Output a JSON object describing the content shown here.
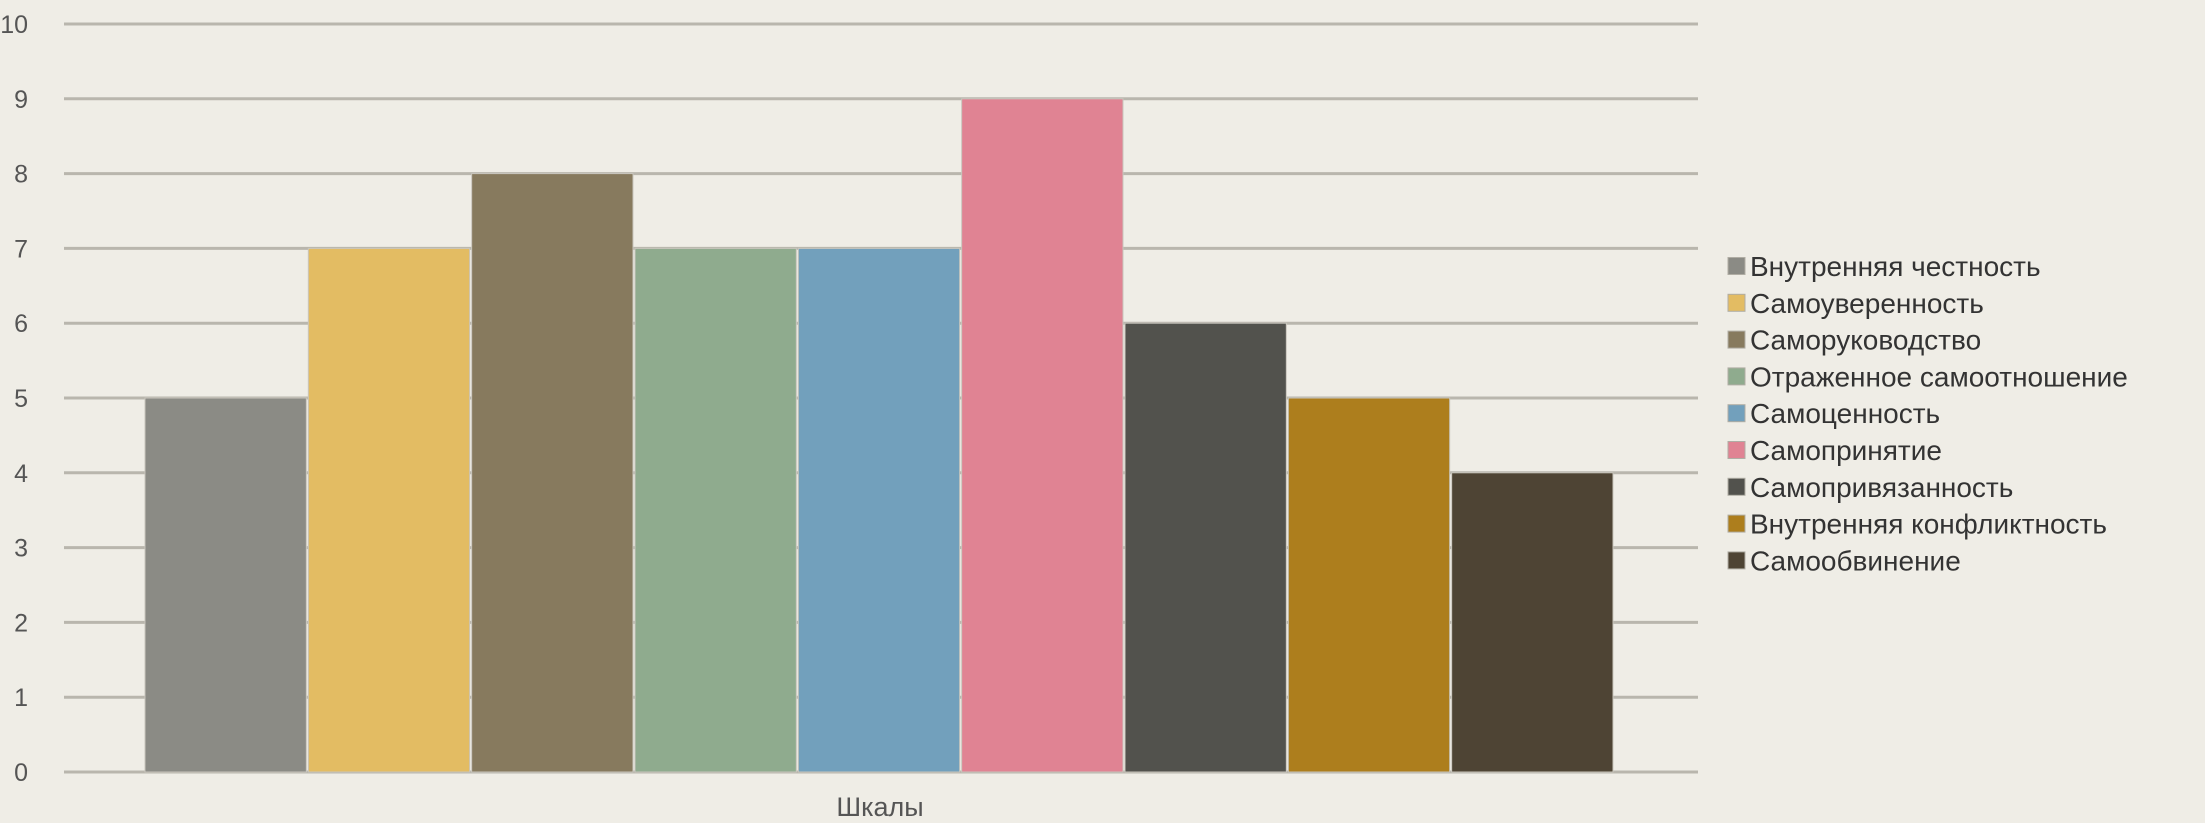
{
  "chart_data": {
    "type": "bar",
    "categories": [
      "Шкалы"
    ],
    "series": [
      {
        "name": "Внутренняя честность",
        "values": [
          5
        ],
        "color": "#8b8b85"
      },
      {
        "name": "Самоуверенность",
        "values": [
          7
        ],
        "color": "#e3bc63"
      },
      {
        "name": "Саморуководство",
        "values": [
          8
        ],
        "color": "#877a5e"
      },
      {
        "name": "Отраженное самоотношение",
        "values": [
          7
        ],
        "color": "#8fab8e"
      },
      {
        "name": "Самоценность",
        "values": [
          7
        ],
        "color": "#72a0bc"
      },
      {
        "name": "Самопринятие",
        "values": [
          9
        ],
        "color": "#e08393"
      },
      {
        "name": "Самопривязанность",
        "values": [
          6
        ],
        "color": "#52524d"
      },
      {
        "name": "Внутренняя конфликтность",
        "values": [
          5
        ],
        "color": "#ad7e1d"
      },
      {
        "name": "Самообвинение",
        "values": [
          4
        ],
        "color": "#4e4434"
      }
    ],
    "title": "",
    "xlabel": "",
    "ylabel": "",
    "ylim": [
      0,
      10
    ],
    "yticks": [
      "0",
      "1",
      "2",
      "3",
      "4",
      "5",
      "6",
      "7",
      "8",
      "9",
      "10"
    ],
    "grid": true,
    "legend_position": "right"
  }
}
